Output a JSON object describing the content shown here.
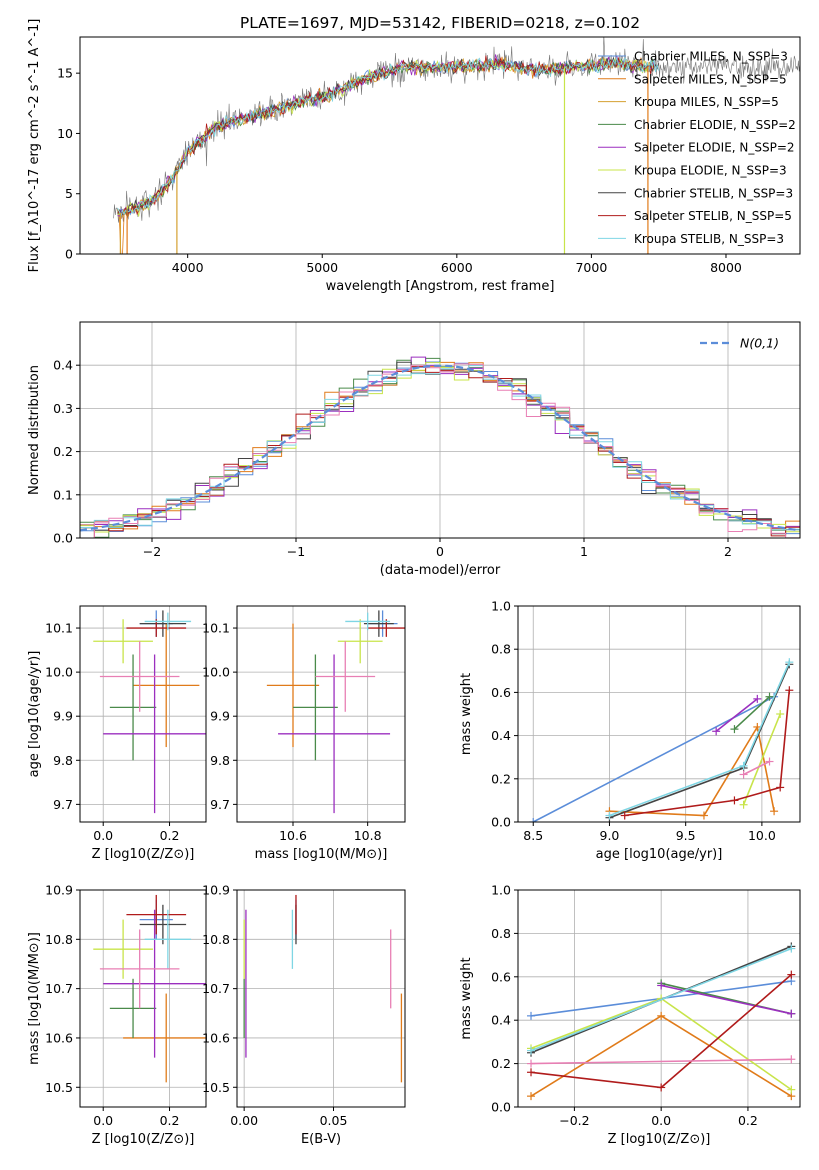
{
  "title": "PLATE=1697, MJD=53142, FIBERID=0218, z=0.102",
  "colors": {
    "s0": "#5b8dd9",
    "s1": "#e07b1a",
    "s2": "#d4a030",
    "s3": "#4a8a4a",
    "s4": "#9b2fbf",
    "s5": "#c8e44a",
    "s6": "#444444",
    "s7": "#b01b1b",
    "s8": "#7fd6e4",
    "gauss": "#5b8dd9",
    "grid": "#b0b0b0"
  },
  "chart_data": [
    {
      "id": "spectrum",
      "type": "line",
      "xlabel": "wavelength [Angstrom, rest frame]",
      "ylabel": "Flux [f_λ10^-17 erg cm^-2 s^-1 A^-1]",
      "xlim": [
        3200,
        8550
      ],
      "ylim": [
        0,
        18
      ],
      "xticks": [
        4000,
        5000,
        6000,
        7000,
        8000
      ],
      "yticks": [
        0,
        5,
        10,
        15
      ],
      "grid": false,
      "legend": "top-right",
      "series": [
        {
          "name": "Chabrier MILES, N_SSP=3",
          "color": "s0"
        },
        {
          "name": "Salpeter MILES, N_SSP=5",
          "color": "s1"
        },
        {
          "name": "Kroupa MILES, N_SSP=5",
          "color": "s2"
        },
        {
          "name": "Chabrier ELODIE, N_SSP=2",
          "color": "s3"
        },
        {
          "name": "Salpeter ELODIE, N_SSP=2",
          "color": "s4"
        },
        {
          "name": "Kroupa ELODIE, N_SSP=3",
          "color": "s5"
        },
        {
          "name": "Chabrier STELIB, N_SSP=3",
          "color": "s6"
        },
        {
          "name": "Salpeter STELIB, N_SSP=5",
          "color": "s7"
        },
        {
          "name": "Kroupa STELIB, N_SSP=3",
          "color": "s8"
        }
      ],
      "continuum": {
        "x": [
          3450,
          3600,
          3750,
          3900,
          4000,
          4200,
          4500,
          4800,
          5000,
          5300,
          5600,
          6000,
          6300,
          6600,
          6900,
          7200,
          7500
        ],
        "y": [
          3.2,
          3.8,
          4.5,
          6.5,
          8.5,
          10.5,
          11.5,
          12.5,
          13.0,
          14.5,
          15.5,
          15.5,
          15.8,
          15.2,
          15.6,
          15.8,
          15.5
        ]
      },
      "annotations_drops": [
        3500,
        3550,
        3920,
        6800,
        7420
      ]
    },
    {
      "id": "residuals",
      "type": "histogram",
      "xlabel": "(data-model)/error",
      "ylabel": "Normed distribution",
      "xlim": [
        -2.5,
        2.5
      ],
      "ylim": [
        0,
        0.5
      ],
      "xticks": [
        -2,
        -1,
        0,
        1,
        2
      ],
      "yticks": [
        0.0,
        0.1,
        0.2,
        0.3,
        0.4
      ],
      "grid": true,
      "legend": "top-right",
      "gauss_label": "N(0,1)",
      "bins": {
        "start": -2.5,
        "width": 0.1
      }
    },
    {
      "id": "z_age",
      "type": "errorbar",
      "xlabel": "Z [log10(Z/Z⊙)]",
      "ylabel": "age  [log10(age/yr)]",
      "xlim": [
        -0.07,
        0.31
      ],
      "ylim": [
        9.66,
        10.15
      ],
      "xticks": [
        0.0,
        0.2
      ],
      "yticks": [
        9.7,
        9.8,
        9.9,
        10.0,
        10.1
      ],
      "grid": true,
      "points": [
        {
          "c": "s0",
          "x": 0.16,
          "xe": 0.05,
          "y": 10.11,
          "ye": 0.03
        },
        {
          "c": "s1",
          "x": 0.19,
          "xe": 0.1,
          "y": 9.97,
          "ye": 0.14
        },
        {
          "c": "s3",
          "x": 0.09,
          "xe": 0.07,
          "y": 9.92,
          "ye": 0.12
        },
        {
          "c": "s4",
          "x": 0.155,
          "xe": 0.155,
          "y": 9.86,
          "ye": 0.18
        },
        {
          "c": "s5",
          "x": 0.06,
          "xe": 0.09,
          "y": 10.07,
          "ye": 0.05
        },
        {
          "c": "s6",
          "x": 0.18,
          "xe": 0.07,
          "y": 10.11,
          "ye": 0.03
        },
        {
          "c": "s7",
          "x": 0.16,
          "xe": 0.09,
          "y": 10.1,
          "ye": 0.02
        },
        {
          "c": "s8",
          "x": 0.195,
          "xe": 0.07,
          "y": 10.115,
          "ye": 0.02
        },
        {
          "c": "s9",
          "x": 0.11,
          "xe": 0.12,
          "y": 9.99,
          "ye": 0.08
        }
      ]
    },
    {
      "id": "mass_age",
      "type": "errorbar",
      "xlabel": "mass [log10(M/M⊙)]",
      "ylabel": "",
      "xlim": [
        10.45,
        10.9
      ],
      "ylim": [
        9.66,
        10.15
      ],
      "xticks": [
        10.6,
        10.8
      ],
      "yticks": [
        9.7,
        9.8,
        9.9,
        10.0,
        10.1
      ],
      "grid": true,
      "points": [
        {
          "c": "s0",
          "x": 10.84,
          "xe": 0.04,
          "y": 10.11,
          "ye": 0.03
        },
        {
          "c": "s1",
          "x": 10.6,
          "xe": 0.07,
          "y": 9.97,
          "ye": 0.14
        },
        {
          "c": "s3",
          "x": 10.66,
          "xe": 0.06,
          "y": 9.92,
          "ye": 0.12
        },
        {
          "c": "s4",
          "x": 10.71,
          "xe": 0.15,
          "y": 9.86,
          "ye": 0.18
        },
        {
          "c": "s5",
          "x": 10.78,
          "xe": 0.06,
          "y": 10.07,
          "ye": 0.05
        },
        {
          "c": "s6",
          "x": 10.83,
          "xe": 0.04,
          "y": 10.11,
          "ye": 0.03
        },
        {
          "c": "s7",
          "x": 10.85,
          "xe": 0.05,
          "y": 10.1,
          "ye": 0.02
        },
        {
          "c": "s8",
          "x": 10.8,
          "xe": 0.06,
          "y": 10.115,
          "ye": 0.02
        },
        {
          "c": "s9",
          "x": 10.74,
          "xe": 0.08,
          "y": 9.99,
          "ye": 0.08
        }
      ]
    },
    {
      "id": "age_weight",
      "type": "line",
      "xlabel": "age  [log10(age/yr)]",
      "ylabel": "mass weight",
      "xlim": [
        8.4,
        10.25
      ],
      "ylim": [
        0,
        1
      ],
      "xticks": [
        8.5,
        9.0,
        9.5,
        10.0
      ],
      "yticks": [
        0.0,
        0.2,
        0.4,
        0.6,
        0.8,
        1.0
      ],
      "grid": true,
      "series": [
        {
          "c": "s0",
          "x": [
            8.5,
            10.08
          ],
          "y": [
            0.0,
            0.58
          ]
        },
        {
          "c": "s1",
          "x": [
            9.0,
            9.62,
            9.97,
            10.08
          ],
          "y": [
            0.05,
            0.03,
            0.44,
            0.05
          ]
        },
        {
          "c": "s3",
          "x": [
            9.82,
            10.05
          ],
          "y": [
            0.43,
            0.58
          ]
        },
        {
          "c": "s4",
          "x": [
            9.7,
            9.97
          ],
          "y": [
            0.42,
            0.57
          ]
        },
        {
          "c": "s5",
          "x": [
            9.88,
            10.12
          ],
          "y": [
            0.08,
            0.5
          ]
        },
        {
          "c": "s6",
          "x": [
            9.0,
            9.88,
            10.18
          ],
          "y": [
            0.02,
            0.25,
            0.73
          ]
        },
        {
          "c": "s7",
          "x": [
            9.1,
            9.82,
            10.12,
            10.18
          ],
          "y": [
            0.03,
            0.1,
            0.16,
            0.61
          ]
        },
        {
          "c": "s8",
          "x": [
            9.0,
            9.88,
            10.18
          ],
          "y": [
            0.03,
            0.26,
            0.74
          ]
        },
        {
          "c": "s9",
          "x": [
            9.88,
            10.05
          ],
          "y": [
            0.22,
            0.28
          ]
        }
      ]
    },
    {
      "id": "z_mass",
      "type": "errorbar",
      "xlabel": "Z [log10(Z/Z⊙)]",
      "ylabel": "mass [log10(M/M⊙)]",
      "xlim": [
        -0.07,
        0.31
      ],
      "ylim": [
        10.46,
        10.9
      ],
      "xticks": [
        0.0,
        0.2
      ],
      "yticks": [
        10.5,
        10.6,
        10.7,
        10.8,
        10.9
      ],
      "grid": true,
      "points": [
        {
          "c": "s0",
          "x": 0.16,
          "xe": 0.05,
          "y": 10.84,
          "ye": 0.04
        },
        {
          "c": "s1",
          "x": 0.19,
          "xe": 0.13,
          "y": 10.6,
          "ye": 0.09
        },
        {
          "c": "s3",
          "x": 0.09,
          "xe": 0.07,
          "y": 10.66,
          "ye": 0.06
        },
        {
          "c": "s4",
          "x": 0.155,
          "xe": 0.155,
          "y": 10.71,
          "ye": 0.15
        },
        {
          "c": "s5",
          "x": 0.06,
          "xe": 0.09,
          "y": 10.78,
          "ye": 0.06
        },
        {
          "c": "s6",
          "x": 0.18,
          "xe": 0.07,
          "y": 10.83,
          "ye": 0.04
        },
        {
          "c": "s7",
          "x": 0.16,
          "xe": 0.09,
          "y": 10.85,
          "ye": 0.04
        },
        {
          "c": "s8",
          "x": 0.195,
          "xe": 0.07,
          "y": 10.8,
          "ye": 0.06
        },
        {
          "c": "s9",
          "x": 0.11,
          "xe": 0.12,
          "y": 10.74,
          "ye": 0.08
        }
      ]
    },
    {
      "id": "ebv_mass",
      "type": "errorbar",
      "xlabel": "E(B-V)",
      "ylabel": "",
      "xlim": [
        -0.004,
        0.09
      ],
      "ylim": [
        10.46,
        10.9
      ],
      "xticks": [
        0.0,
        0.05
      ],
      "yticks": [
        10.5,
        10.6,
        10.7,
        10.8,
        10.9
      ],
      "grid": true,
      "points": [
        {
          "c": "s0",
          "x": 0.029,
          "xe": 0,
          "y": 10.84,
          "ye": 0.04
        },
        {
          "c": "s1",
          "x": 0.088,
          "xe": 0,
          "y": 10.6,
          "ye": 0.09
        },
        {
          "c": "s3",
          "x": 0.0,
          "xe": 0,
          "y": 10.66,
          "ye": 0.06
        },
        {
          "c": "s4",
          "x": 0.001,
          "xe": 0,
          "y": 10.71,
          "ye": 0.15
        },
        {
          "c": "s5",
          "x": 0.0,
          "xe": 0,
          "y": 10.78,
          "ye": 0.06
        },
        {
          "c": "s6",
          "x": 0.029,
          "xe": 0,
          "y": 10.83,
          "ye": 0.04
        },
        {
          "c": "s7",
          "x": 0.029,
          "xe": 0,
          "y": 10.85,
          "ye": 0.04
        },
        {
          "c": "s8",
          "x": 0.027,
          "xe": 0,
          "y": 10.8,
          "ye": 0.06
        },
        {
          "c": "s9",
          "x": 0.082,
          "xe": 0,
          "y": 10.74,
          "ye": 0.08
        }
      ]
    },
    {
      "id": "z_weight",
      "type": "line",
      "xlabel": "Z [log10(Z/Z⊙)]",
      "ylabel": "mass weight",
      "xlim": [
        -0.33,
        0.32
      ],
      "ylim": [
        0,
        1
      ],
      "xticks": [
        -0.2,
        0.0,
        0.2
      ],
      "yticks": [
        0.0,
        0.2,
        0.4,
        0.6,
        0.8,
        1.0
      ],
      "grid": true,
      "series": [
        {
          "c": "s0",
          "x": [
            -0.3,
            0.3
          ],
          "y": [
            0.42,
            0.58
          ]
        },
        {
          "c": "s1",
          "x": [
            -0.3,
            0.0,
            0.3
          ],
          "y": [
            0.05,
            0.42,
            0.05
          ]
        },
        {
          "c": "s3",
          "x": [
            0.0,
            0.3
          ],
          "y": [
            0.57,
            0.43
          ]
        },
        {
          "c": "s4",
          "x": [
            0.0,
            0.3
          ],
          "y": [
            0.56,
            0.43
          ]
        },
        {
          "c": "s5",
          "x": [
            -0.3,
            0.0,
            0.3
          ],
          "y": [
            0.27,
            0.5,
            0.08
          ]
        },
        {
          "c": "s6",
          "x": [
            -0.3,
            0.3
          ],
          "y": [
            0.25,
            0.74
          ]
        },
        {
          "c": "s7",
          "x": [
            -0.3,
            0.0,
            0.3
          ],
          "y": [
            0.16,
            0.09,
            0.61
          ]
        },
        {
          "c": "s8",
          "x": [
            -0.3,
            0.3
          ],
          "y": [
            0.26,
            0.73
          ]
        },
        {
          "c": "s9",
          "x": [
            -0.3,
            0.3
          ],
          "y": [
            0.2,
            0.22
          ]
        }
      ]
    }
  ]
}
